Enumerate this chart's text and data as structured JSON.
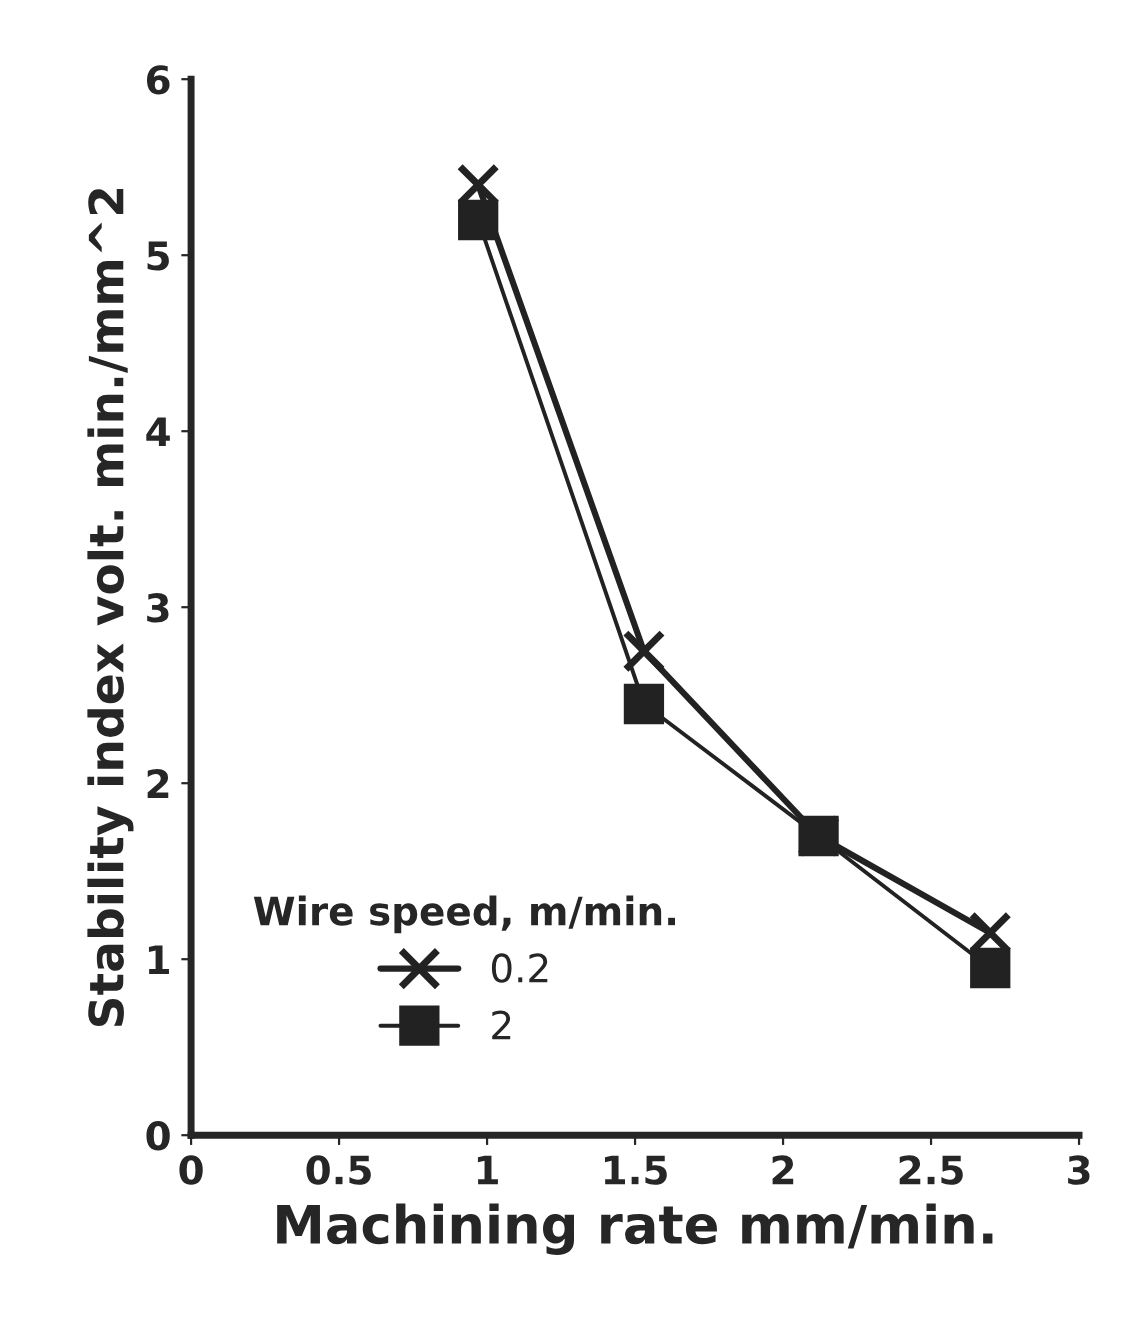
{
  "chart_data": {
    "type": "line",
    "xlabel": "Machining rate mm/min.",
    "ylabel": "Stability index volt. min./mm^2",
    "legend_title": "Wire speed, m/min.",
    "legend": "bottom left",
    "grid": false,
    "xlim": [
      0,
      3
    ],
    "xticks": [
      0,
      0.5,
      1,
      1.5,
      2,
      2.5,
      3
    ],
    "ylim": [
      0,
      6
    ],
    "yticks": [
      0,
      1,
      2,
      3,
      4,
      5,
      6
    ],
    "series": [
      {
        "name": "0.2",
        "color": "#222222",
        "marker": "cross",
        "x": [
          0.97,
          1.53,
          2.12,
          2.7
        ],
        "values": [
          5.4,
          2.75,
          1.7,
          1.15
        ]
      },
      {
        "name": "2",
        "color": "#222222",
        "marker": "square",
        "x": [
          0.97,
          1.53,
          2.12,
          2.7
        ],
        "values": [
          5.2,
          2.45,
          1.7,
          0.95
        ]
      }
    ]
  }
}
